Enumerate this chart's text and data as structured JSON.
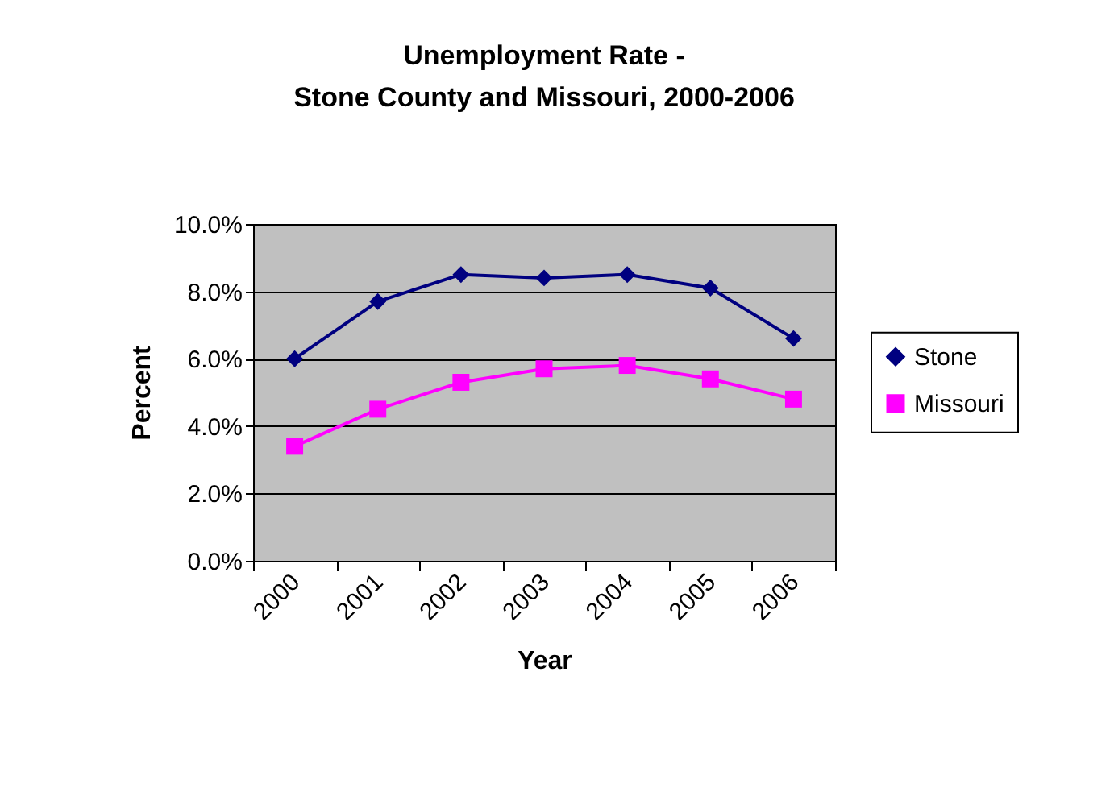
{
  "chart_data": {
    "type": "line",
    "title": "Unemployment Rate -\nStone County and Missouri, 2000-2006",
    "xlabel": "Year",
    "ylabel": "Percent",
    "categories": [
      "2000",
      "2001",
      "2002",
      "2003",
      "2004",
      "2005",
      "2006"
    ],
    "series": [
      {
        "name": "Stone",
        "color": "#000080",
        "marker": "diamond",
        "values": [
          6.0,
          7.7,
          8.5,
          8.4,
          8.5,
          8.1,
          6.6
        ]
      },
      {
        "name": "Missouri",
        "color": "#ff00ff",
        "marker": "square",
        "values": [
          3.4,
          4.5,
          5.3,
          5.7,
          5.8,
          5.4,
          4.8
        ]
      }
    ],
    "ylim": [
      0,
      10
    ],
    "yticks": [
      {
        "value": 0,
        "label": "0.0%"
      },
      {
        "value": 2,
        "label": "2.0%"
      },
      {
        "value": 4,
        "label": "4.0%"
      },
      {
        "value": 6,
        "label": "6.0%"
      },
      {
        "value": 8,
        "label": "8.0%"
      },
      {
        "value": 10,
        "label": "10.0%"
      }
    ],
    "grid": "y",
    "legend": "right",
    "line_style": "solid"
  }
}
